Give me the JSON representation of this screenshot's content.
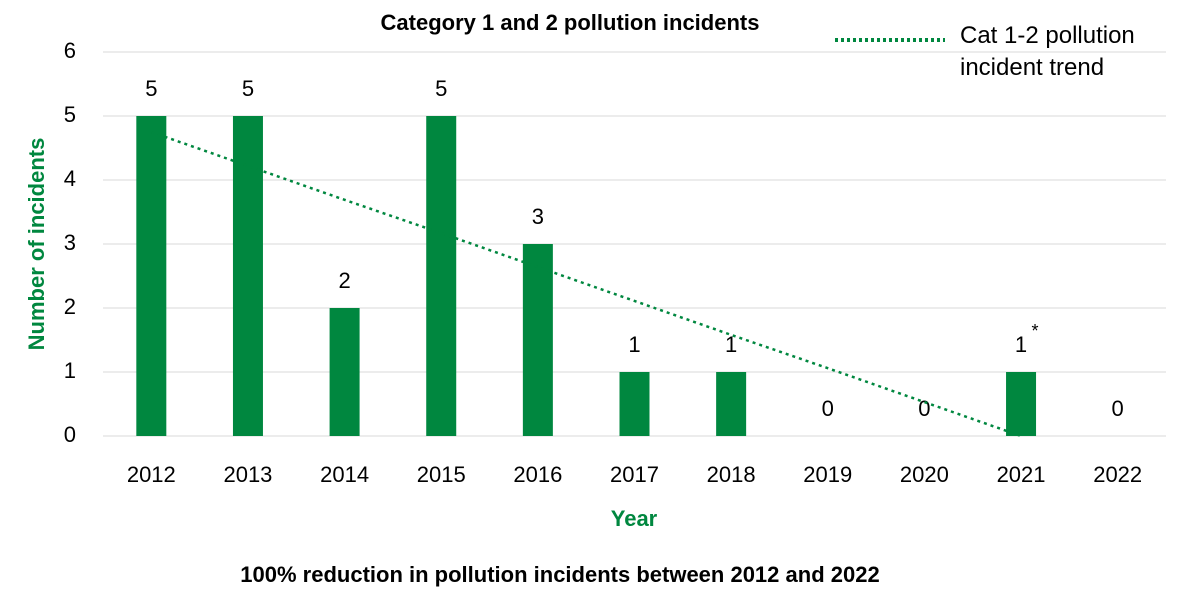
{
  "chart_data": {
    "type": "bar",
    "title": "Category 1 and 2 pollution incidents",
    "subtitle": "100% reduction in pollution incidents between 2012 and 2022",
    "x_label": "Year",
    "y_label": "Number of incidents",
    "categories": [
      "2012",
      "2013",
      "2014",
      "2015",
      "2016",
      "2017",
      "2018",
      "2019",
      "2020",
      "2021",
      "2022"
    ],
    "values": [
      5,
      5,
      2,
      5,
      3,
      1,
      1,
      0,
      0,
      1,
      0
    ],
    "color": "#00873f",
    "trend": {
      "name": "Cat 1-2 pollution incident trend",
      "color": "#00873f",
      "style": "dotted",
      "values": [
        4.75,
        4.22,
        3.69,
        3.17,
        2.64,
        2.11,
        1.58,
        1.06,
        0.53,
        0,
        null
      ]
    },
    "annotation": {
      "text": "*",
      "category": "2021"
    },
    "ylim": [
      0,
      6
    ],
    "yticks": [
      0,
      1,
      2,
      3,
      4,
      5,
      6
    ],
    "grid": true,
    "legend": "top-right"
  }
}
